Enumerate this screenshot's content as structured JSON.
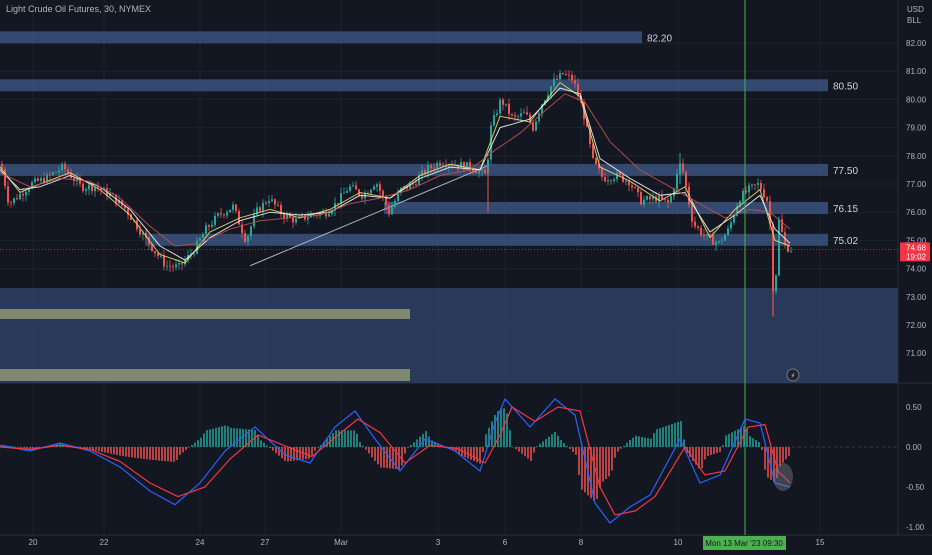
{
  "header": {
    "title": "Light Crude Oil Futures, 30, NYMEX",
    "currency": "USD",
    "unit": "BLL"
  },
  "colors": {
    "background": "#131722",
    "zone": "#2d4064",
    "zone_edge": "#3f5b8a",
    "support": "#8f9777",
    "grid": "#1e222d",
    "candle_up": "#26a69a",
    "candle_down": "#ef5350",
    "ema_fast": "#e6d96b",
    "ema_mid": "#f0f0f0",
    "ema_slow": "#c0504d",
    "macd_line": "#2962ff",
    "signal_line": "#f23645",
    "crosshair": "#4caf50",
    "last_price": "#f23645"
  },
  "chart_data": [
    {
      "type": "candlestick",
      "title": "Light Crude Oil Futures, 30, NYMEX",
      "ylim": [
        70.1,
        83.0
      ],
      "price_ticks": [
        82.0,
        81.0,
        80.0,
        79.0,
        78.0,
        77.0,
        76.0,
        75.0,
        74.0,
        73.0,
        72.0,
        71.0
      ],
      "x_ticks": [
        "20",
        "22",
        "24",
        "27",
        "Mar",
        "3",
        "6",
        "8",
        "10",
        "15"
      ],
      "levels": [
        {
          "label": "82.20",
          "price": 82.2
        },
        {
          "label": "80.50",
          "price": 80.5
        },
        {
          "label": "77.50",
          "price": 77.5
        },
        {
          "label": "76.15",
          "price": 76.15
        },
        {
          "label": "75.02",
          "price": 75.02
        }
      ],
      "last_price": {
        "value": "74.68",
        "countdown": "19:02"
      },
      "crosshair_label": "Mon 13 Mar '23   09:30",
      "trendline": [
        {
          "date": "Feb 27",
          "price": 74.1
        },
        {
          "date": "Mar 3",
          "price": 77.65
        }
      ],
      "series": [
        {
          "key": "price",
          "values": [
            [
              0,
              77.7
            ],
            [
              8,
              76.3
            ],
            [
              18,
              76.6
            ],
            [
              30,
              77.0
            ],
            [
              45,
              77.2
            ],
            [
              62,
              77.6
            ],
            [
              80,
              76.9
            ],
            [
              95,
              76.9
            ],
            [
              110,
              76.6
            ],
            [
              125,
              76.1
            ],
            [
              140,
              75.3
            ],
            [
              152,
              74.7
            ],
            [
              165,
              74.1
            ],
            [
              178,
              74.05
            ],
            [
              192,
              74.6
            ],
            [
              205,
              75.4
            ],
            [
              218,
              75.9
            ],
            [
              232,
              76.2
            ],
            [
              245,
              75.0
            ],
            [
              255,
              76.0
            ],
            [
              268,
              76.5
            ],
            [
              282,
              75.9
            ],
            [
              295,
              75.7
            ],
            [
              310,
              75.9
            ],
            [
              325,
              76.0
            ],
            [
              335,
              76.3
            ],
            [
              348,
              76.9
            ],
            [
              362,
              76.6
            ],
            [
              375,
              77.1
            ],
            [
              388,
              76.0
            ],
            [
              400,
              76.8
            ],
            [
              412,
              77.0
            ],
            [
              425,
              77.5
            ],
            [
              440,
              77.8
            ],
            [
              455,
              77.7
            ],
            [
              470,
              77.6
            ],
            [
              485,
              77.3
            ],
            [
              490,
              79.0
            ],
            [
              500,
              80.0
            ],
            [
              512,
              79.3
            ],
            [
              524,
              79.5
            ],
            [
              532,
              79.0
            ],
            [
              540,
              79.8
            ],
            [
              552,
              80.6
            ],
            [
              562,
              80.9
            ],
            [
              572,
              80.7
            ],
            [
              582,
              79.6
            ],
            [
              592,
              77.8
            ],
            [
              602,
              77.2
            ],
            [
              615,
              77.3
            ],
            [
              628,
              77.1
            ],
            [
              640,
              76.4
            ],
            [
              655,
              76.5
            ],
            [
              668,
              76.3
            ],
            [
              680,
              77.8
            ],
            [
              692,
              75.6
            ],
            [
              705,
              75.1
            ],
            [
              718,
              74.9
            ],
            [
              728,
              75.4
            ],
            [
              738,
              76.5
            ],
            [
              748,
              76.8
            ],
            [
              758,
              77.0
            ],
            [
              768,
              76.3
            ],
            [
              773,
              72.6
            ],
            [
              778,
              75.7
            ],
            [
              784,
              74.8
            ],
            [
              790,
              74.68
            ]
          ]
        },
        {
          "key": "ema_fast",
          "values": [
            [
              0,
              77.6
            ],
            [
              20,
              76.7
            ],
            [
              40,
              77.0
            ],
            [
              70,
              77.4
            ],
            [
              100,
              76.8
            ],
            [
              130,
              75.9
            ],
            [
              160,
              74.5
            ],
            [
              185,
              74.2
            ],
            [
              210,
              75.3
            ],
            [
              240,
              75.8
            ],
            [
              270,
              76.1
            ],
            [
              300,
              75.8
            ],
            [
              330,
              76.1
            ],
            [
              360,
              76.7
            ],
            [
              390,
              76.5
            ],
            [
              420,
              77.3
            ],
            [
              450,
              77.7
            ],
            [
              480,
              77.5
            ],
            [
              500,
              79.4
            ],
            [
              530,
              79.2
            ],
            [
              560,
              80.6
            ],
            [
              580,
              80.1
            ],
            [
              600,
              77.6
            ],
            [
              630,
              77.1
            ],
            [
              660,
              76.4
            ],
            [
              685,
              76.9
            ],
            [
              710,
              75.1
            ],
            [
              735,
              76.1
            ],
            [
              760,
              76.8
            ],
            [
              775,
              75.0
            ],
            [
              790,
              74.8
            ]
          ]
        },
        {
          "key": "ema_mid",
          "values": [
            [
              0,
              77.5
            ],
            [
              20,
              76.8
            ],
            [
              40,
              76.9
            ],
            [
              70,
              77.3
            ],
            [
              100,
              76.9
            ],
            [
              130,
              76.1
            ],
            [
              160,
              74.8
            ],
            [
              185,
              74.3
            ],
            [
              210,
              75.1
            ],
            [
              240,
              75.7
            ],
            [
              270,
              76.0
            ],
            [
              300,
              75.9
            ],
            [
              330,
              76.0
            ],
            [
              360,
              76.6
            ],
            [
              390,
              76.5
            ],
            [
              420,
              77.2
            ],
            [
              450,
              77.6
            ],
            [
              480,
              77.5
            ],
            [
              500,
              79.0
            ],
            [
              530,
              79.3
            ],
            [
              560,
              80.4
            ],
            [
              580,
              80.2
            ],
            [
              600,
              77.9
            ],
            [
              630,
              77.2
            ],
            [
              660,
              76.6
            ],
            [
              685,
              76.7
            ],
            [
              710,
              75.3
            ],
            [
              735,
              75.9
            ],
            [
              760,
              76.6
            ],
            [
              775,
              75.4
            ],
            [
              790,
              74.9
            ]
          ]
        },
        {
          "key": "ema_slow",
          "values": [
            [
              0,
              77.4
            ],
            [
              30,
              76.9
            ],
            [
              60,
              77.2
            ],
            [
              90,
              77.1
            ],
            [
              120,
              76.5
            ],
            [
              150,
              75.5
            ],
            [
              175,
              74.8
            ],
            [
              200,
              74.9
            ],
            [
              230,
              75.4
            ],
            [
              260,
              75.7
            ],
            [
              290,
              75.8
            ],
            [
              320,
              75.9
            ],
            [
              350,
              76.3
            ],
            [
              380,
              76.5
            ],
            [
              410,
              76.8
            ],
            [
              440,
              77.3
            ],
            [
              470,
              77.5
            ],
            [
              495,
              78.2
            ],
            [
              520,
              78.8
            ],
            [
              545,
              79.6
            ],
            [
              565,
              80.2
            ],
            [
              585,
              79.9
            ],
            [
              610,
              78.5
            ],
            [
              640,
              77.5
            ],
            [
              670,
              76.9
            ],
            [
              700,
              76.3
            ],
            [
              725,
              75.8
            ],
            [
              750,
              76.1
            ],
            [
              770,
              76.0
            ],
            [
              790,
              75.4
            ]
          ]
        }
      ]
    },
    {
      "type": "macd",
      "ylim": [
        -1.0,
        0.5
      ],
      "y_ticks": [
        "0.50",
        "0.00",
        "-0.50",
        "-1.00"
      ],
      "series": [
        {
          "key": "macd",
          "values": [
            [
              0,
              0.02
            ],
            [
              30,
              -0.05
            ],
            [
              60,
              0.05
            ],
            [
              90,
              -0.05
            ],
            [
              120,
              -0.25
            ],
            [
              150,
              -0.55
            ],
            [
              175,
              -0.72
            ],
            [
              200,
              -0.45
            ],
            [
              225,
              -0.05
            ],
            [
              255,
              0.25
            ],
            [
              285,
              -0.1
            ],
            [
              310,
              -0.2
            ],
            [
              335,
              0.25
            ],
            [
              355,
              0.45
            ],
            [
              375,
              0.1
            ],
            [
              400,
              -0.3
            ],
            [
              425,
              0.1
            ],
            [
              455,
              -0.05
            ],
            [
              480,
              -0.3
            ],
            [
              495,
              0.3
            ],
            [
              505,
              0.6
            ],
            [
              530,
              0.25
            ],
            [
              555,
              0.6
            ],
            [
              575,
              0.4
            ],
            [
              595,
              -0.7
            ],
            [
              610,
              -0.95
            ],
            [
              630,
              -0.75
            ],
            [
              650,
              -0.6
            ],
            [
              680,
              0.1
            ],
            [
              700,
              -0.45
            ],
            [
              720,
              -0.35
            ],
            [
              745,
              0.35
            ],
            [
              760,
              0.3
            ],
            [
              775,
              -0.45
            ],
            [
              790,
              -0.5
            ]
          ]
        },
        {
          "key": "signal",
          "values": [
            [
              0,
              0.0
            ],
            [
              30,
              -0.03
            ],
            [
              60,
              0.02
            ],
            [
              90,
              -0.03
            ],
            [
              120,
              -0.18
            ],
            [
              150,
              -0.45
            ],
            [
              178,
              -0.62
            ],
            [
              205,
              -0.5
            ],
            [
              230,
              -0.15
            ],
            [
              258,
              0.15
            ],
            [
              288,
              0.0
            ],
            [
              312,
              -0.12
            ],
            [
              338,
              0.15
            ],
            [
              358,
              0.35
            ],
            [
              380,
              0.18
            ],
            [
              405,
              -0.2
            ],
            [
              430,
              0.02
            ],
            [
              458,
              -0.02
            ],
            [
              485,
              -0.2
            ],
            [
              500,
              0.15
            ],
            [
              512,
              0.5
            ],
            [
              535,
              0.32
            ],
            [
              558,
              0.5
            ],
            [
              580,
              0.45
            ],
            [
              600,
              -0.5
            ],
            [
              615,
              -0.85
            ],
            [
              635,
              -0.8
            ],
            [
              655,
              -0.62
            ],
            [
              685,
              0.0
            ],
            [
              705,
              -0.35
            ],
            [
              725,
              -0.3
            ],
            [
              748,
              0.25
            ],
            [
              765,
              0.28
            ],
            [
              778,
              -0.3
            ],
            [
              790,
              -0.45
            ]
          ]
        }
      ]
    }
  ]
}
